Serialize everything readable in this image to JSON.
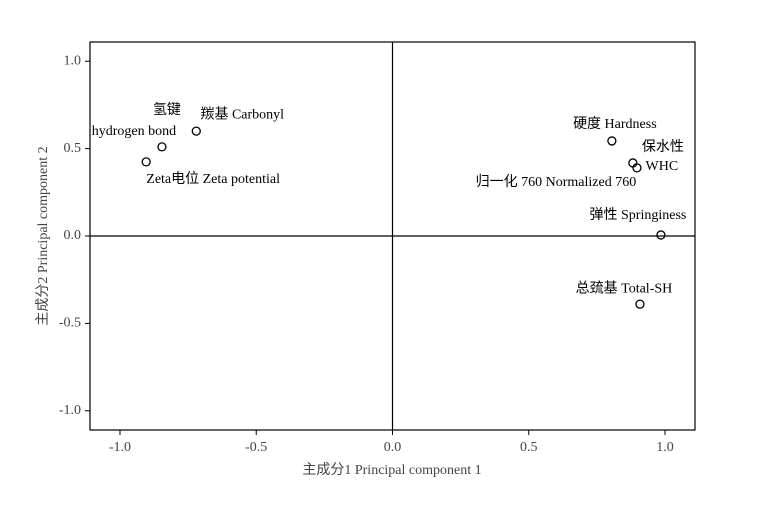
{
  "chart_data": {
    "type": "scatter",
    "xlabel": "主成分1 Principal component 1",
    "ylabel": "主成分2 Principal component 2",
    "x": [
      -0.846,
      -0.72,
      -0.904,
      0.805,
      0.882,
      0.897,
      0.985,
      0.908
    ],
    "y": [
      0.51,
      0.6,
      0.424,
      0.544,
      0.418,
      0.39,
      0.006,
      -0.39
    ],
    "labels": [
      [
        "氢键",
        "hydrogen bond"
      ],
      [
        "羰基 Carbonyl"
      ],
      [
        "Zeta电位 Zeta potential"
      ],
      [
        "硬度 Hardness"
      ],
      [
        "保水性",
        "WHC"
      ],
      [
        "归一化 760 Normalized 760"
      ],
      [
        "弹性 Springiness"
      ],
      [
        "总巯基 Total-SH"
      ]
    ],
    "color": "#000000",
    "xlim": [
      -1.11,
      1.11
    ],
    "ylim": [
      -1.11,
      1.11
    ],
    "xticks": [
      {
        "value": -1,
        "label": "-1.0"
      },
      -0.5,
      {
        "value": 0,
        "label": "0.0"
      },
      0.5,
      {
        "value": 1,
        "label": "1.0"
      }
    ],
    "yticks": [
      {
        "value": 1,
        "label": "1.0"
      },
      0.5,
      {
        "value": 0,
        "label": "0.0"
      },
      -0.5,
      {
        "value": -1,
        "label": "-1.0"
      }
    ]
  }
}
